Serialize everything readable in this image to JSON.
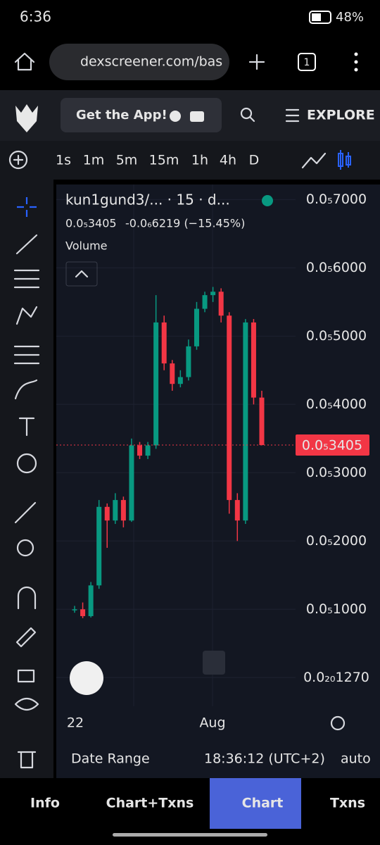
{
  "status_bar": {
    "time": "6:36",
    "battery": "48%"
  },
  "browser": {
    "url": "dexscreener.com/bas",
    "tabs": "1"
  },
  "header": {
    "cta": "Get the App!",
    "explore": "EXPLORE"
  },
  "timeframes": [
    "1s",
    "1m",
    "5m",
    "15m",
    "1h",
    "4h",
    "D"
  ],
  "active_timeframe": "15m",
  "chart_data": {
    "type": "candlestick",
    "pair": "kun1gund3/... · 15 · d...",
    "price_label": "0.0₅3405",
    "change_label": "-0.0₆6219 (−15.45%)",
    "volume_label": "Volume",
    "last_price": {
      "value": 3.405e-06,
      "label": "0.0₅3405"
    },
    "ylim": [
      -4.2e-07,
      7.22e-06
    ],
    "yticks": [
      {
        "value": 7e-06,
        "label": "0.0₅7000"
      },
      {
        "value": 6e-06,
        "label": "0.0₅6000"
      },
      {
        "value": 5e-06,
        "label": "0.0₅5000"
      },
      {
        "value": 4e-06,
        "label": "0.0₅4000"
      },
      {
        "value": 3e-06,
        "label": "0.0₅3000"
      },
      {
        "value": 2e-06,
        "label": "0.0₅2000"
      },
      {
        "value": 1e-06,
        "label": "0.0₅1000"
      },
      {
        "value": 1.27e-20,
        "label": "0.0₂₀1270"
      }
    ],
    "xlabels": [
      "22",
      "Aug"
    ],
    "up_color": "#089981",
    "down_color": "#f23645",
    "open": [
      1e-06,
      1e-06,
      9e-07,
      1.35e-06,
      2.5e-06,
      2.3e-06,
      2.6e-06,
      2.3e-06,
      3.4e-06,
      3.25e-06,
      3.4e-06,
      5.2e-06,
      4.6e-06,
      4.3e-06,
      4.4e-06,
      4.85e-06,
      5.4e-06,
      5.6e-06,
      5.65e-06,
      5.3e-06,
      2.6e-06,
      2.3e-06,
      5.2e-06,
      4.1e-06
    ],
    "high": [
      1.05e-06,
      1.1e-06,
      1.4e-06,
      2.6e-06,
      2.55e-06,
      2.7e-06,
      2.65e-06,
      3.5e-06,
      3.45e-06,
      3.45e-06,
      5.6e-06,
      5.3e-06,
      4.65e-06,
      4.5e-06,
      4.95e-06,
      5.5e-06,
      5.65e-06,
      5.72e-06,
      5.7e-06,
      5.35e-06,
      2.7e-06,
      5.25e-06,
      5.25e-06,
      4.2e-06
    ],
    "low": [
      9.5e-07,
      8.7e-07,
      8.8e-07,
      1.3e-06,
      1.9e-06,
      2.25e-06,
      2.2e-06,
      2.28e-06,
      3.2e-06,
      3.2e-06,
      3.35e-06,
      4.5e-06,
      4.2e-06,
      4.25e-06,
      4.35e-06,
      4.8e-06,
      5.35e-06,
      5.5e-06,
      5.2e-06,
      2.4e-06,
      2e-06,
      2.25e-06,
      4e-06,
      3.4e-06
    ],
    "close": [
      1e-06,
      9e-07,
      1.35e-06,
      2.5e-06,
      2.3e-06,
      2.6e-06,
      2.3e-06,
      3.4e-06,
      3.25e-06,
      3.4e-06,
      5.2e-06,
      4.6e-06,
      4.3e-06,
      4.4e-06,
      4.85e-06,
      5.4e-06,
      5.6e-06,
      5.65e-06,
      5.3e-06,
      2.6e-06,
      2.3e-06,
      5.2e-06,
      4.1e-06,
      3.405e-06
    ]
  },
  "footer": {
    "date_range": "Date Range",
    "clock": "18:36:12 (UTC+2)",
    "scale": "auto"
  },
  "nav": [
    "Info",
    "Chart+Txns",
    "Chart",
    "Txns"
  ],
  "active_nav": "Chart"
}
